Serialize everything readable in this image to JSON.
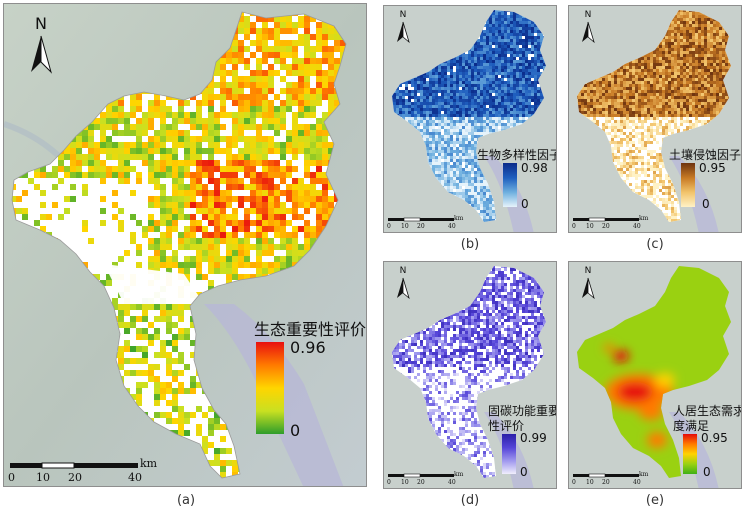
{
  "panels": {
    "a": {
      "caption": "(a)",
      "north": "N",
      "legend_title": "生态重要性评价",
      "legend_max": "0.96",
      "legend_min": "0",
      "scale_ticks": [
        "0",
        "10",
        "20",
        "40"
      ],
      "scale_unit": "km",
      "colors": [
        "#2e9d2b",
        "#c9e021",
        "#ffd500",
        "#ff7a00",
        "#e80f0f"
      ]
    },
    "b": {
      "caption": "(b)",
      "north": "N",
      "legend_title": "生物多样性因子",
      "legend_max": "0.98",
      "legend_min": "0",
      "scale_ticks": [
        "0",
        "10",
        "20",
        "40"
      ],
      "scale_unit": "km",
      "colors": [
        "#e6f3fb",
        "#6fb0df",
        "#1f5fbf",
        "#0b2b8a"
      ]
    },
    "c": {
      "caption": "(c)",
      "north": "N",
      "legend_title": "土壤侵蚀因子",
      "legend_max": "0.95",
      "legend_min": "0",
      "scale_ticks": [
        "0",
        "10",
        "20",
        "40"
      ],
      "scale_unit": "km",
      "colors": [
        "#fff2c6",
        "#f2c46c",
        "#c87a24",
        "#6e3410"
      ]
    },
    "d": {
      "caption": "(d)",
      "north": "N",
      "legend_title_line1": "固碳功能重要",
      "legend_title_line2": "性评价",
      "legend_max": "0.99",
      "legend_min": "0",
      "scale_ticks": [
        "0",
        "10",
        "20",
        "40"
      ],
      "scale_unit": "km",
      "colors": [
        "#f0eefc",
        "#9f98ee",
        "#5544d8",
        "#2b1fa8"
      ]
    },
    "e": {
      "caption": "(e)",
      "north": "N",
      "legend_title_line1": "人居生态需求",
      "legend_title_line2": "度满足",
      "legend_max": "0.95",
      "legend_min": "0",
      "scale_ticks": [
        "0",
        "10",
        "20",
        "40"
      ],
      "scale_unit": "km",
      "colors": [
        "#3fb016",
        "#9ad111",
        "#ffd200",
        "#ff7a00",
        "#e60a0a"
      ]
    }
  }
}
